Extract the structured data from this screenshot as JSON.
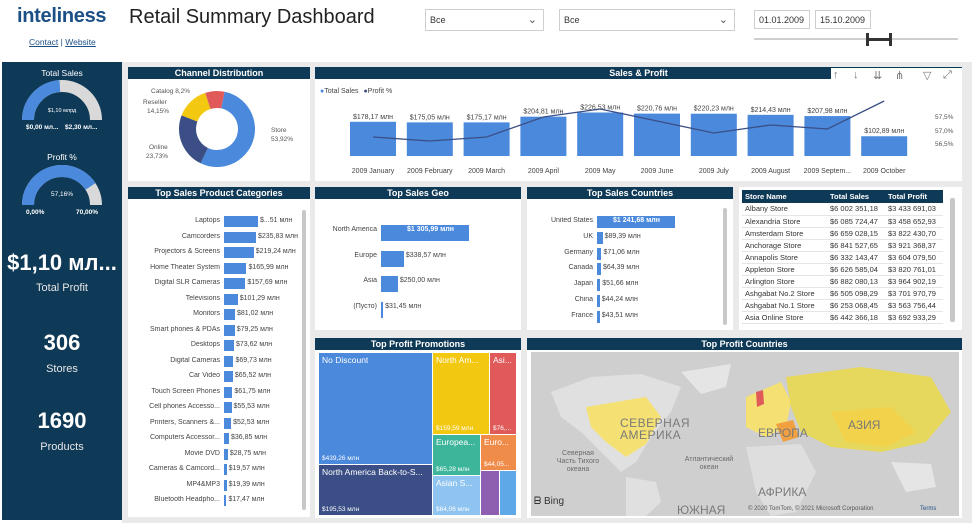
{
  "header": {
    "logo": "inteliness",
    "contact_link": "Contact",
    "link_sep": " | ",
    "website_link": "Website",
    "title": "Retail Summary Dashboard",
    "filter1": "Все",
    "filter2": "Все",
    "date_from": "01.01.2009",
    "date_to": "15.10.2009"
  },
  "sidebar": {
    "total_sales_label": "Total Sales",
    "total_sales_value": "$1,10 млрд",
    "total_sales_min": "$0,00 мл...",
    "total_sales_max": "$2,30 мл...",
    "total_sales_fraction": 0.48,
    "profit_pct_label": "Profit %",
    "profit_pct_value": "57,16%",
    "profit_pct_min": "0,00%",
    "profit_pct_max": "70,00%",
    "profit_pct_fraction": 0.816,
    "total_profit_value": "$1,10 мл...",
    "total_profit_label": "Total Profit",
    "stores_value": "306",
    "stores_label": "Stores",
    "products_value": "1690",
    "products_label": "Products"
  },
  "channel": {
    "title": "Channel Distribution",
    "labels": {
      "catalog": "Catalog 8,2%",
      "reseller": "Reseller",
      "reseller_pct": "14,15%",
      "online": "Online",
      "online_pct": "23,73%",
      "store": "Store",
      "store_pct": "53,92%"
    }
  },
  "sales_profit": {
    "title": "Sales & Profit",
    "legend_sales": "Total Sales",
    "legend_profit": "Profit %",
    "y_right": [
      "57,5%",
      "57,0%",
      "56,5%"
    ]
  },
  "categories_panel": {
    "title": "Top Sales Product Categories"
  },
  "geo_panel": {
    "title": "Top Sales Geo"
  },
  "countries_panel": {
    "title": "Top Sales Countries"
  },
  "store_table": {
    "headers": [
      "Store Name",
      "Total Sales",
      "Total Profit"
    ],
    "rows": [
      [
        "Albany Store",
        "$6 002 351,18",
        "$3 433 691,03"
      ],
      [
        "Alexandria Store",
        "$6 085 724,47",
        "$3 458 652,93"
      ],
      [
        "Amsterdam Store",
        "$6 659 028,15",
        "$3 822 430,70"
      ],
      [
        "Anchorage Store",
        "$6 841 527,65",
        "$3 921 368,37"
      ],
      [
        "Annapolis Store",
        "$6 332 143,47",
        "$3 604 079,50"
      ],
      [
        "Appleton Store",
        "$6 626 585,04",
        "$3 820 761,01"
      ],
      [
        "Arlington Store",
        "$6 882 080,13",
        "$3 964 902,19"
      ],
      [
        "Ashgabat No.2 Store",
        "$6 505 098,29",
        "$3 701 970,79"
      ],
      [
        "Ashgabat No.1 Store",
        "$6 253 068,45",
        "$3 563 756,44"
      ],
      [
        "Asia Online Store",
        "$6 442 366,18",
        "$3 692 933,29"
      ]
    ]
  },
  "promotions": {
    "title": "Top Profit Promotions",
    "items": [
      {
        "label": "No Discount",
        "value": "$439,26 млн",
        "color": "#4a89dc"
      },
      {
        "label": "North Am...",
        "value": "$159,59 млн",
        "color": "#f2c811"
      },
      {
        "label": "Asi...",
        "value": "$76,...",
        "color": "#e05a5a"
      },
      {
        "label": "North America Back-to-S...",
        "value": "$195,53 млн",
        "color": "#3b4f86"
      },
      {
        "label": "Europea...",
        "value": "$65,28 млн",
        "color": "#3db59a"
      },
      {
        "label": "Euro...",
        "value": "$44,05...",
        "color": "#f08c4a"
      },
      {
        "label": "Asian S...",
        "value": "$64,06 млн",
        "color": "#8fc3f0"
      },
      {
        "label": "",
        "value": "",
        "color": "#8e5fb0"
      },
      {
        "label": "",
        "value": "",
        "color": "#5fa8e8"
      }
    ]
  },
  "map": {
    "title": "Top Profit Countries",
    "labels": {
      "north_america": "СЕВЕРНАЯ АМЕРИКА",
      "europe": "ЕВРОПА",
      "asia": "АЗИЯ",
      "africa": "АФРИКА",
      "south": "ЮЖНАЯ",
      "atlantic": "Атлантический океан",
      "pacific": "Северная Часть Тихого океана"
    },
    "bing": "Bing",
    "copyright": "© 2020 TomTom, © 2021 Microsoft Corporation",
    "terms": "Terms"
  },
  "chart_data": [
    {
      "type": "bar",
      "title": "Sales & Profit",
      "categories": [
        "2009 January",
        "2009 February",
        "2009 March",
        "2009 April",
        "2009 May",
        "2009 June",
        "2009 July",
        "2009 August",
        "2009 Septem...",
        "2009 October"
      ],
      "series": [
        {
          "name": "Total Sales",
          "values": [
            178.17,
            175.05,
            175.17,
            204.81,
            226.53,
            220.76,
            220.23,
            214.43,
            207.98,
            102.89
          ],
          "labels": [
            "$178,17 млн",
            "$175,05 млн",
            "$175,17 млн",
            "$204,81 млн",
            "$226,53 млн",
            "$220,76 млн",
            "$220,23 млн",
            "$214,43 млн",
            "$207,98 млн",
            "$102,89 млн"
          ]
        },
        {
          "name": "Profit %",
          "values": [
            56.7,
            56.6,
            56.7,
            57.2,
            57.4,
            57.1,
            56.8,
            57.0,
            56.9,
            57.6
          ]
        }
      ],
      "ylim_right": [
        56.5,
        57.5
      ]
    },
    {
      "type": "bar",
      "title": "Top Sales Product Categories",
      "categories": [
        "Laptops",
        "Camcorders",
        "Projectors & Screens",
        "Home Theater System",
        "Digital SLR Cameras",
        "Televisions",
        "Monitors",
        "Smart phones & PDAs",
        "Desktops",
        "Digital Cameras",
        "Car Video",
        "Touch Screen Phones",
        "Cell phones Accesso...",
        "Printers, Scanners &...",
        "Computers Accessor...",
        "Movie DVD",
        "Cameras & Camcord...",
        "MP4&MP3",
        "Bluetooth Headpho..."
      ],
      "values": [
        251,
        235.83,
        219.24,
        165.99,
        157.69,
        101.29,
        81.02,
        79.25,
        73.62,
        69.73,
        65.52,
        61.75,
        55.53,
        52.53,
        36.85,
        28.75,
        19.57,
        19.39,
        17.47
      ],
      "labels": [
        "$251 млн",
        "$235,83 млн",
        "$219,24 млн",
        "$165,99 млн",
        "$157,69 млн",
        "$101,29 млн",
        "$81,02 млн",
        "$79,25 млн",
        "$73,62 млн",
        "$69,73 млн",
        "$65,52 млн",
        "$61,75 млн",
        "$55,53 млн",
        "$52,53 млн",
        "$36,85 млн",
        "$28,75 млн",
        "$19,57 млн",
        "$19,39 млн",
        "$17,47 млн"
      ],
      "display_labels": [
        "$...51 млн",
        "$235,83 млн",
        "$219,24 млн",
        "$165,99 млн",
        "$157,69 млн",
        "$101,29 млн",
        "$81,02 млн",
        "$79,25 млн",
        "$73,62 млн",
        "$69,73 млн",
        "$65,52 млн",
        "$61,75 млн",
        "$55,53 млн",
        "$52,53 млн",
        "$36,85 млн",
        "$28,75 млн",
        "$19,57 млн",
        "$19,39 млн",
        "$17,47 млн"
      ]
    },
    {
      "type": "bar",
      "title": "Top Sales Geo",
      "categories": [
        "North America",
        "Europe",
        "Asia",
        "(Пусто)"
      ],
      "values": [
        1305.99,
        338.57,
        250.0,
        31.45
      ],
      "labels": [
        "$1 305,99 млн",
        "$338,57 млн",
        "$250,00 млн",
        "$31,45 млн"
      ]
    },
    {
      "type": "bar",
      "title": "Top Sales Countries",
      "categories": [
        "United States",
        "UK",
        "Germany",
        "Canada",
        "Japan",
        "China",
        "France"
      ],
      "values": [
        1241.68,
        89.39,
        71.06,
        64.39,
        51.66,
        44.24,
        43.51
      ],
      "labels": [
        "$1 241,68 млн",
        "$89,39 млн",
        "$71,06 млн",
        "$64,39 млн",
        "$51,66 млн",
        "$44,24 млн",
        "$43,51 млн"
      ]
    },
    {
      "type": "pie",
      "title": "Channel Distribution",
      "categories": [
        "Store",
        "Online",
        "Reseller",
        "Catalog"
      ],
      "values": [
        53.92,
        23.73,
        14.15,
        8.2
      ],
      "colors": [
        "#4a89dc",
        "#3b4f86",
        "#f2c811",
        "#e05a5a"
      ]
    }
  ]
}
